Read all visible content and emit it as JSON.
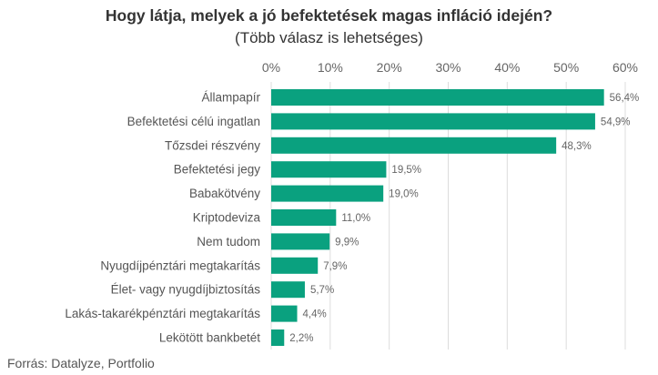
{
  "title": "Hogy látja, melyek a jó befektetések magas infláció idején?",
  "subtitle": "(Több válasz is lehetséges)",
  "source": "Forrás: Datalyze, Portfolio",
  "colors": {
    "bar": "#0aa17f",
    "grid": "#dcdcdc",
    "text": "#333333"
  },
  "chart_data": {
    "type": "bar",
    "orientation": "horizontal",
    "title": "Hogy látja, melyek a jó befektetések magas infláció idején?",
    "subtitle": "(Több válasz is lehetséges)",
    "categories": [
      "Állampapír",
      "Befektetési célú ingatlan",
      "Tőzsdei részvény",
      "Befektetési jegy",
      "Babakötvény",
      "Kriptodeviza",
      "Nem tudom",
      "Nyugdíjpénztári megtakarítás",
      "Élet- vagy nyugdíjbiztosítás",
      "Lakás-takarékpénztári megtakarítás",
      "Lekötött bankbetét"
    ],
    "values": [
      56.4,
      54.9,
      48.3,
      19.5,
      19.0,
      11.0,
      9.9,
      7.9,
      5.7,
      4.4,
      2.2
    ],
    "value_labels": [
      "56,4%",
      "54,9%",
      "48,3%",
      "19,5%",
      "19,0%",
      "11,0%",
      "9,9%",
      "7,9%",
      "5,7%",
      "4,4%",
      "2,2%"
    ],
    "xlim": [
      0,
      60
    ],
    "xticks": [
      0,
      10,
      20,
      30,
      40,
      50,
      60
    ],
    "xtick_labels": [
      "0%",
      "10%",
      "20%",
      "30%",
      "40%",
      "50%",
      "60%"
    ],
    "axis_position": "top",
    "grid": true,
    "legend": "none"
  }
}
